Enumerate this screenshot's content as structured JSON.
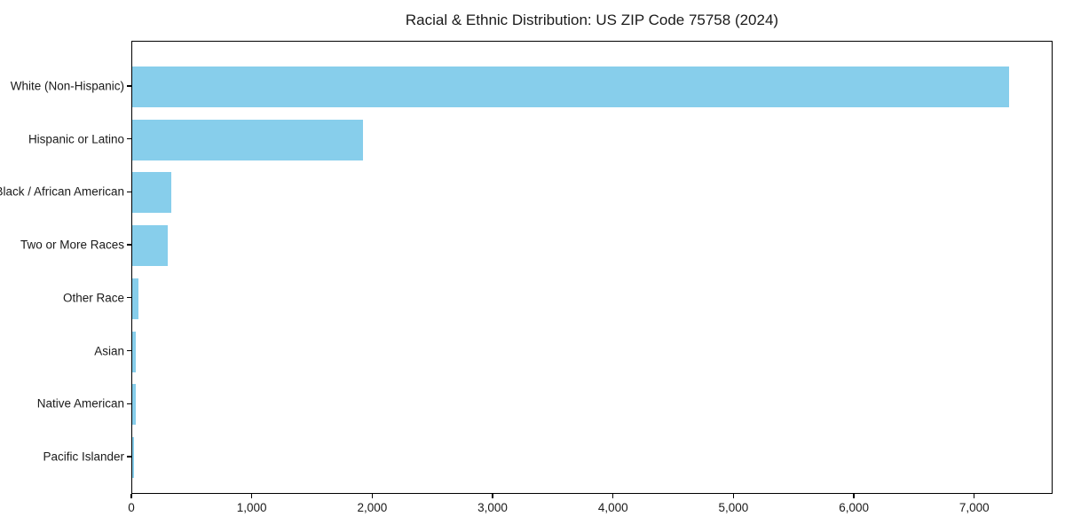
{
  "title": "Racial & Ethnic Distribution: US ZIP Code 75758 (2024)",
  "colors": {
    "bar": "#87CEEB",
    "axis": "#000000",
    "text": "#1a1a1a",
    "background": "#ffffff"
  },
  "chart_data": {
    "type": "bar",
    "orientation": "horizontal",
    "title": "Racial & Ethnic Distribution: US ZIP Code 75758 (2024)",
    "xlabel": "",
    "ylabel": "",
    "categories": [
      "White (Non-Hispanic)",
      "Hispanic or Latino",
      "Black / African American",
      "Two or More Races",
      "Other Race",
      "Asian",
      "Native American",
      "Pacific Islander"
    ],
    "values": [
      7280,
      1918,
      322,
      297,
      49,
      30,
      32,
      15
    ],
    "xlim": [
      0,
      7650
    ],
    "x_ticks": [
      0,
      1000,
      2000,
      3000,
      4000,
      5000,
      6000,
      7000
    ],
    "x_tick_labels": [
      "0",
      "1,000",
      "2,000",
      "3,000",
      "4,000",
      "5,000",
      "6,000",
      "7,000"
    ],
    "bar_color": "#87CEEB",
    "grid": false,
    "legend": null
  }
}
